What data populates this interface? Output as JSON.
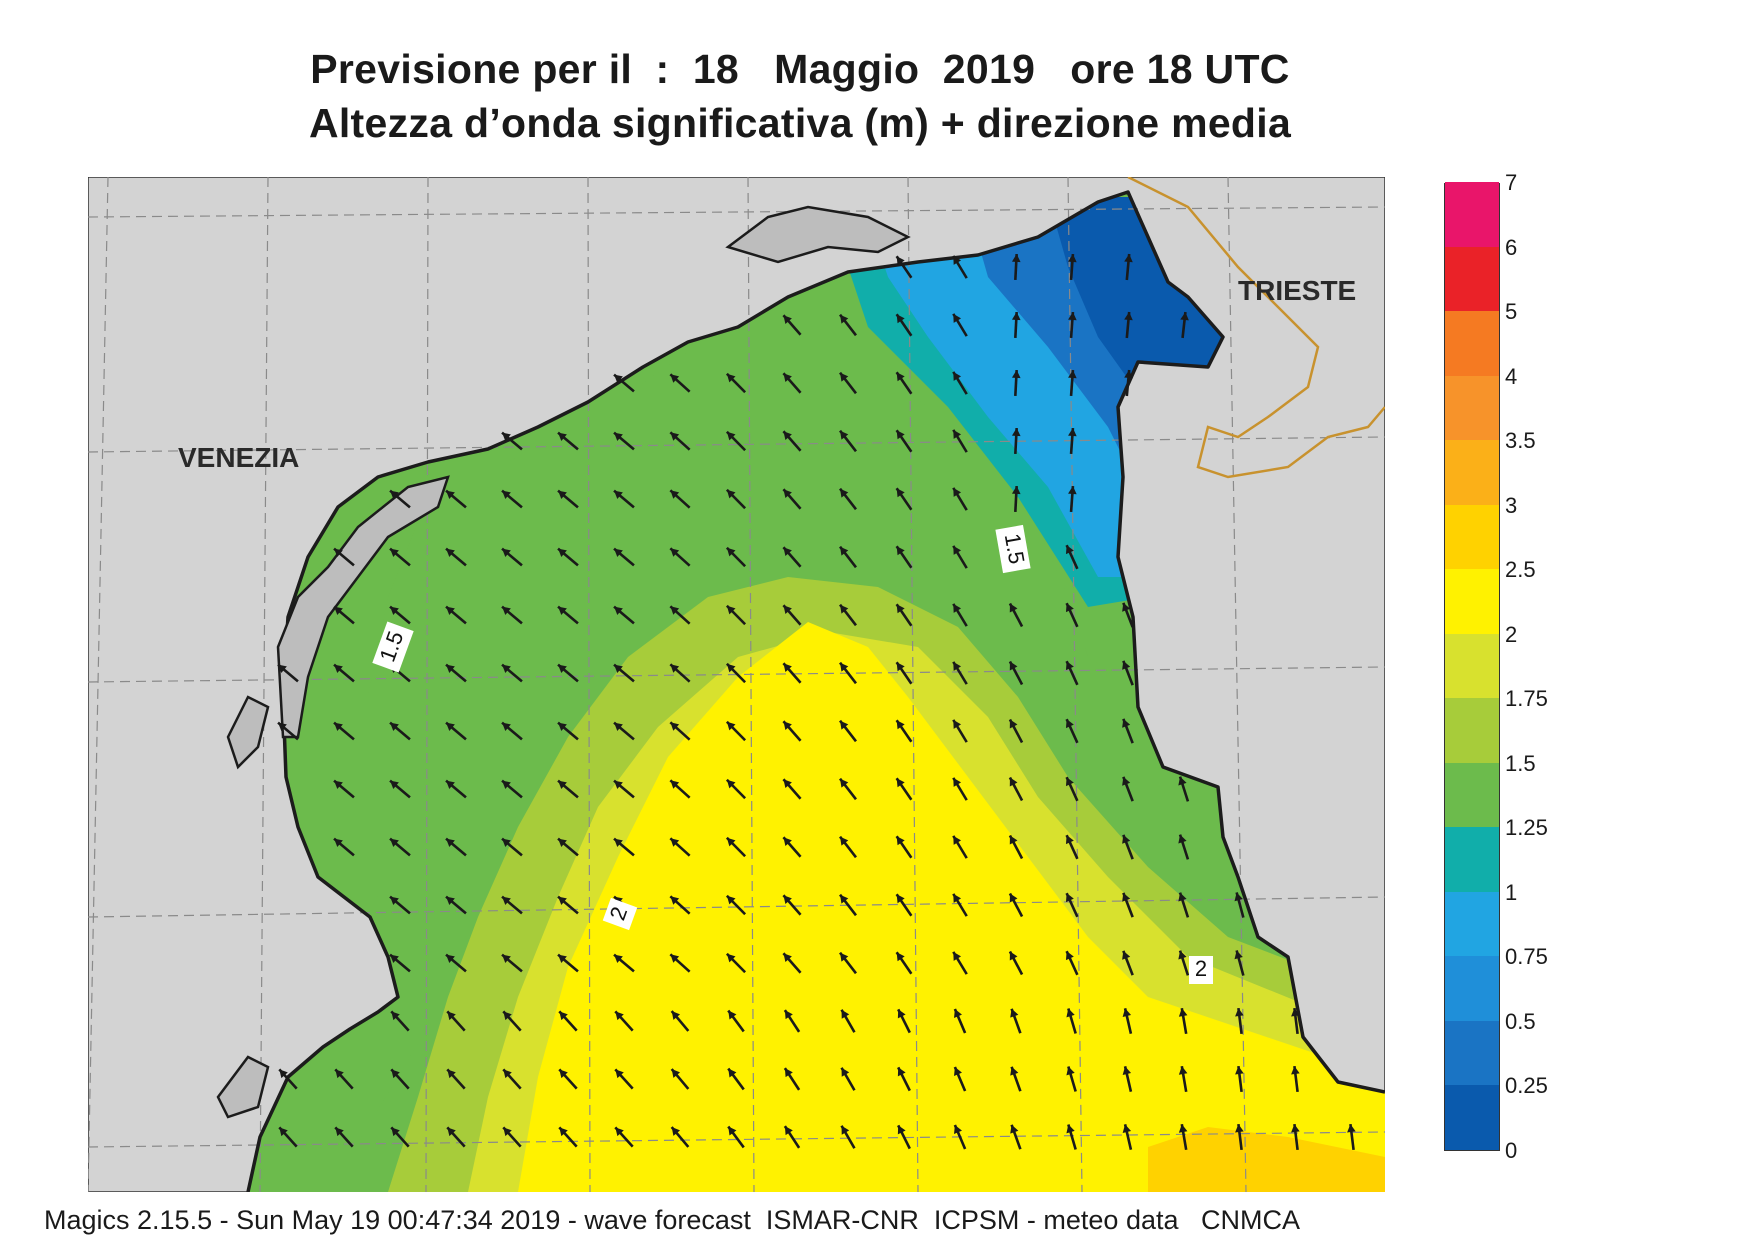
{
  "title": {
    "line1": "Previsione per il  :  18   Maggio  2019   ore 18 UTC",
    "line2": "Altezza d’onda significativa (m) + direzione media"
  },
  "map": {
    "cities": [
      {
        "name": "VENEZIA"
      },
      {
        "name": "TRIESTE"
      }
    ],
    "contour_labels": [
      "1.5",
      "1.5",
      "2",
      "2"
    ],
    "colors": {
      "land": "#d3d3d3",
      "coast": "#1c1c1c",
      "border": "#c8922e"
    }
  },
  "legend": {
    "labels": [
      "7",
      "6",
      "5",
      "4",
      "3.5",
      "3",
      "2.5",
      "2",
      "1.75",
      "1.5",
      "1.25",
      "1",
      "0.75",
      "0.5",
      "0.25",
      "0"
    ],
    "colors": [
      "#0a5aad",
      "#1a74c4",
      "#1f8fd9",
      "#21a5e2",
      "#11aeaa",
      "#6cbb4c",
      "#a7cc3a",
      "#d8e12e",
      "#fff200",
      "#ffd200",
      "#fbb018",
      "#f7932a",
      "#f57a22",
      "#ea2228",
      "#e9156a"
    ]
  },
  "footer": "Magics 2.15.5 - Sun May 19 00:47:34 2019 - wave forecast  ISMAR-CNR  ICPSM - meteo data   CNMCA"
}
